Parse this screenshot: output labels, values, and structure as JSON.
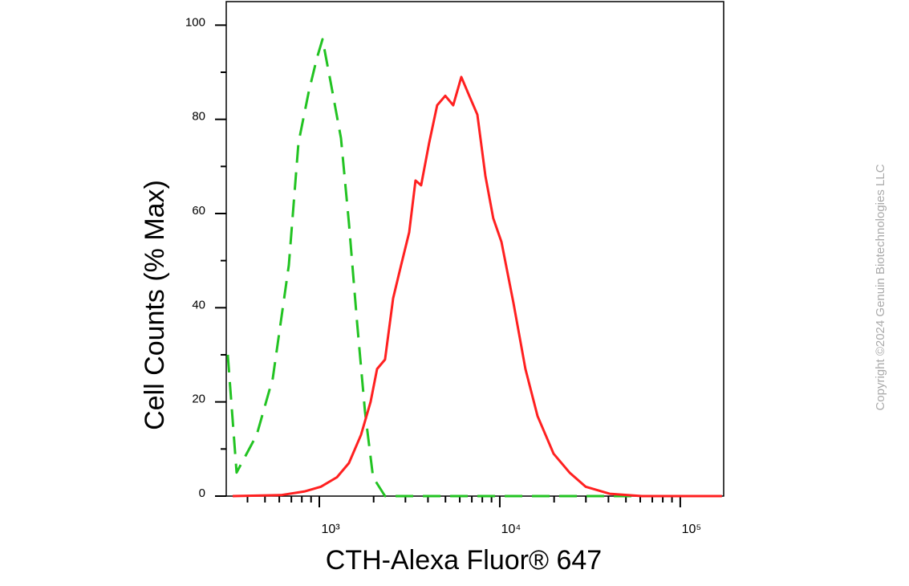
{
  "chart_data": {
    "type": "line",
    "ylabel": "Cell Counts (% Max)",
    "xlabel": "CTH-Alexa Fluor® 647",
    "copyright": "Copyright ©2024 Genuin Biotechnologies LLC",
    "xscale": "log",
    "xlim": [
      305,
      174000
    ],
    "ylim": [
      0,
      105
    ],
    "xticks": [
      {
        "value": 1000,
        "label": "10³"
      },
      {
        "value": 10000,
        "label": "10⁴"
      },
      {
        "value": 100000,
        "label": "10⁵"
      }
    ],
    "xminorticks": [
      400,
      500,
      600,
      700,
      800,
      900,
      2000,
      3000,
      4000,
      5000,
      6000,
      7000,
      8000,
      9000,
      20000,
      30000,
      40000,
      50000,
      60000,
      70000,
      80000,
      90000
    ],
    "yticks": [
      0,
      20,
      40,
      60,
      80,
      100
    ],
    "yminorticks": [
      10,
      30,
      50,
      70,
      90
    ],
    "series": [
      {
        "color": "#22c322",
        "dash": true,
        "x": [
          311,
          348,
          450,
          552,
          678,
          766,
          875,
          970,
          1042,
          1154,
          1318,
          1459,
          1618,
          1791,
          1986,
          2312,
          7907,
          170000
        ],
        "values": [
          30,
          5,
          13,
          25,
          49,
          75,
          86,
          93,
          97,
          88,
          76,
          58,
          37,
          18,
          4,
          0,
          0,
          0
        ]
      },
      {
        "color": "#ff2020",
        "dash": false,
        "x": [
          331,
          612,
          832,
          1021,
          1252,
          1459,
          1702,
          1923,
          2089,
          2312,
          2564,
          2839,
          3148,
          3412,
          3664,
          4062,
          4500,
          4989,
          5521,
          6122,
          6776,
          7510,
          8318,
          9204,
          10210,
          11910,
          13870,
          16180,
          19860,
          24360,
          29900,
          40640,
          61230,
          170200
        ],
        "values": [
          0,
          0.2,
          1,
          2,
          4,
          7,
          13,
          20,
          27,
          29,
          42,
          49,
          56,
          67,
          66,
          75,
          83,
          85,
          83,
          89,
          85,
          81,
          68,
          59,
          54,
          41,
          27,
          17,
          9,
          5,
          2,
          0.5,
          0,
          0
        ]
      }
    ]
  }
}
